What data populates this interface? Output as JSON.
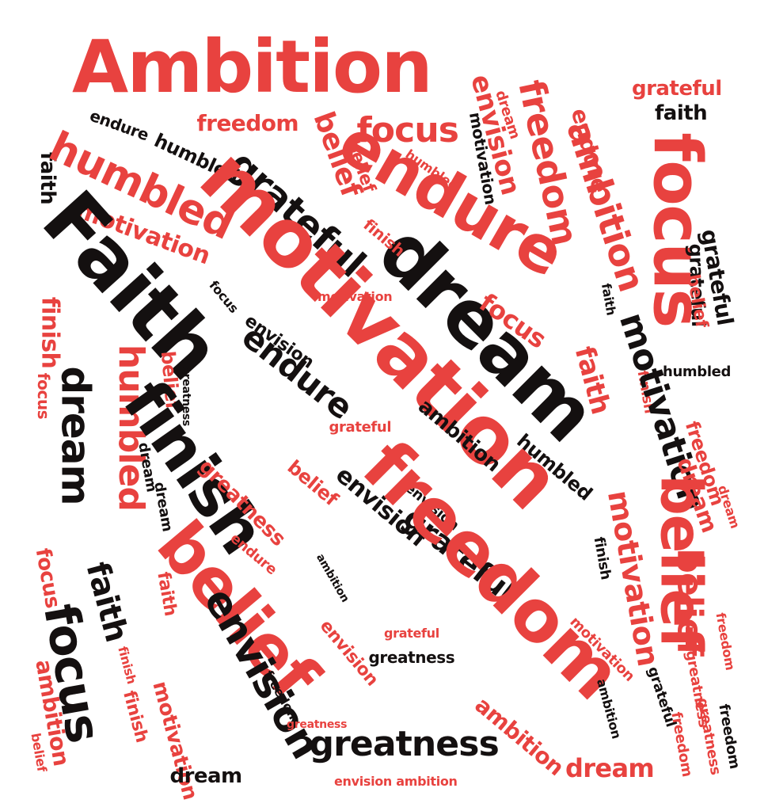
{
  "palette": {
    "red": "#e8423f",
    "black": "#141010"
  },
  "words": [
    {
      "text": "Ambition",
      "color": "red"
    },
    {
      "text": "grateful",
      "color": "red"
    },
    {
      "text": "faith",
      "color": "black"
    },
    {
      "text": "freedom",
      "color": "red"
    },
    {
      "text": "endure",
      "color": "black"
    },
    {
      "text": "humbled",
      "color": "black"
    },
    {
      "text": "faith",
      "color": "black"
    },
    {
      "text": "humbled",
      "color": "red"
    },
    {
      "text": "motivation",
      "color": "red"
    },
    {
      "text": "focus",
      "color": "red"
    },
    {
      "text": "belief",
      "color": "red"
    },
    {
      "text": "grateful",
      "color": "black"
    },
    {
      "text": "belief",
      "color": "red"
    },
    {
      "text": "motivation",
      "color": "black"
    },
    {
      "text": "envision",
      "color": "red"
    },
    {
      "text": "dream",
      "color": "red"
    },
    {
      "text": "freedom",
      "color": "red"
    },
    {
      "text": "endure",
      "color": "red"
    },
    {
      "text": "ambition",
      "color": "red"
    },
    {
      "text": "endure",
      "color": "red"
    },
    {
      "text": "focus",
      "color": "red"
    },
    {
      "text": "Faith",
      "color": "black"
    },
    {
      "text": "motivation",
      "color": "red"
    },
    {
      "text": "dream",
      "color": "black"
    },
    {
      "text": "grateful",
      "color": "black"
    },
    {
      "text": "finish",
      "color": "red"
    },
    {
      "text": "humbled",
      "color": "red"
    },
    {
      "text": "focus",
      "color": "red"
    },
    {
      "text": "finish",
      "color": "red"
    },
    {
      "text": "dream",
      "color": "black"
    },
    {
      "text": "endure",
      "color": "black"
    },
    {
      "text": "envision",
      "color": "black"
    },
    {
      "text": "focus",
      "color": "black"
    },
    {
      "text": "motivation",
      "color": "red"
    },
    {
      "text": "faith",
      "color": "red"
    },
    {
      "text": "faith",
      "color": "black"
    },
    {
      "text": "belief",
      "color": "red"
    },
    {
      "text": "grateful",
      "color": "black"
    },
    {
      "text": "humbled",
      "color": "black"
    },
    {
      "text": "humbled",
      "color": "red"
    },
    {
      "text": "belief",
      "color": "red"
    },
    {
      "text": "greatness",
      "color": "black"
    },
    {
      "text": "finish",
      "color": "black"
    },
    {
      "text": "dream",
      "color": "black"
    },
    {
      "text": "focus",
      "color": "red"
    },
    {
      "text": "grateful",
      "color": "red"
    },
    {
      "text": "ambition",
      "color": "black"
    },
    {
      "text": "finish",
      "color": "red"
    },
    {
      "text": "motivation",
      "color": "black"
    },
    {
      "text": "humbled",
      "color": "black"
    },
    {
      "text": "freedom",
      "color": "red"
    },
    {
      "text": "dream",
      "color": "red"
    },
    {
      "text": "dream",
      "color": "red"
    },
    {
      "text": "greatness",
      "color": "red"
    },
    {
      "text": "belief",
      "color": "red"
    },
    {
      "text": "envision",
      "color": "black"
    },
    {
      "text": "envision",
      "color": "black"
    },
    {
      "text": "dream",
      "color": "black"
    },
    {
      "text": "grateful",
      "color": "black"
    },
    {
      "text": "finish",
      "color": "black"
    },
    {
      "text": "motivation",
      "color": "red"
    },
    {
      "text": "endure",
      "color": "red"
    },
    {
      "text": "freedom",
      "color": "red"
    },
    {
      "text": "ambition",
      "color": "black"
    },
    {
      "text": "faith",
      "color": "black"
    },
    {
      "text": "faith",
      "color": "red"
    },
    {
      "text": "belief",
      "color": "red"
    },
    {
      "text": "focus",
      "color": "red"
    },
    {
      "text": "focus",
      "color": "black"
    },
    {
      "text": "envision",
      "color": "black"
    },
    {
      "text": "greatness",
      "color": "black"
    },
    {
      "text": "grateful",
      "color": "red"
    },
    {
      "text": "envision",
      "color": "red"
    },
    {
      "text": "belief",
      "color": "red"
    },
    {
      "text": "belief",
      "color": "red"
    },
    {
      "text": "finish",
      "color": "red"
    },
    {
      "text": "grateful",
      "color": "black"
    },
    {
      "text": "greatness",
      "color": "red"
    },
    {
      "text": "freedom",
      "color": "red"
    },
    {
      "text": "ambition",
      "color": "red"
    },
    {
      "text": "finish",
      "color": "red"
    },
    {
      "text": "ambition",
      "color": "red"
    },
    {
      "text": "freedom",
      "color": "black"
    },
    {
      "text": "greatness",
      "color": "red"
    },
    {
      "text": "motivation",
      "color": "red"
    },
    {
      "text": "greatness",
      "color": "black"
    },
    {
      "text": "ambition",
      "color": "black"
    },
    {
      "text": "dream",
      "color": "red"
    },
    {
      "text": "greatness",
      "color": "red"
    },
    {
      "text": "freedom",
      "color": "black"
    },
    {
      "text": "belief",
      "color": "red"
    },
    {
      "text": "dream",
      "color": "black"
    },
    {
      "text": "envision ambition",
      "color": "red"
    },
    {
      "text": "motivation",
      "color": "red"
    },
    {
      "text": "freedom",
      "color": "red"
    }
  ]
}
